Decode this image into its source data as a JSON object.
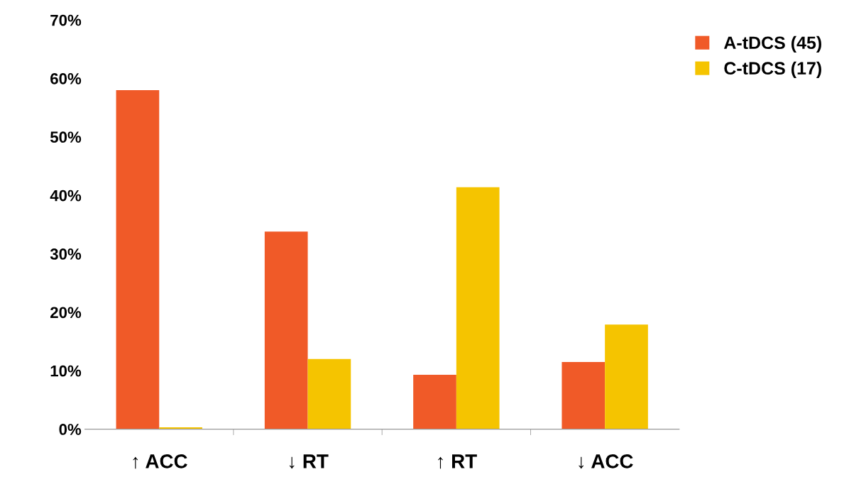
{
  "chart_data": {
    "type": "bar",
    "categories": [
      "↑ ACC",
      "↓ RT",
      "↑ RT",
      "↓ ACC"
    ],
    "series": [
      {
        "name": "A-tDCS (45)",
        "color": "#f05a28",
        "values": [
          58,
          33.8,
          9.3,
          11.5
        ]
      },
      {
        "name": "C-tDCS (17)",
        "color": "#f5c400",
        "values": [
          0.3,
          12,
          41.4,
          17.9
        ]
      }
    ],
    "ylim": [
      0,
      70
    ],
    "yticks": [
      {
        "value": 0,
        "label": "0%"
      },
      {
        "value": 10,
        "label": "10%"
      },
      {
        "value": 20,
        "label": "20%"
      },
      {
        "value": 30,
        "label": "30%"
      },
      {
        "value": 40,
        "label": "40%"
      },
      {
        "value": 50,
        "label": "50%"
      },
      {
        "value": 60,
        "label": "60%"
      },
      {
        "value": 70,
        "label": "70%"
      }
    ],
    "grid": false,
    "legend": "top right"
  }
}
